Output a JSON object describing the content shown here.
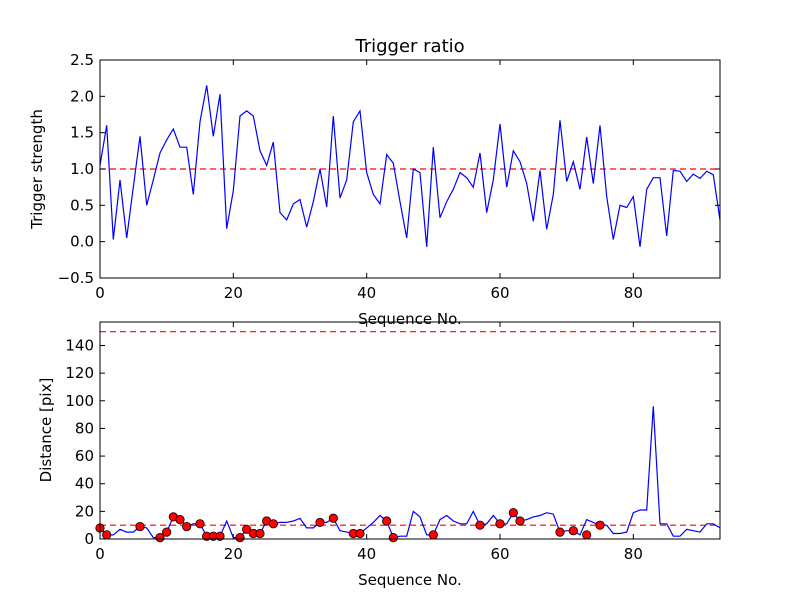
{
  "chart_data": [
    {
      "type": "line",
      "title": "Trigger ratio",
      "xlabel": "Sequence No.",
      "ylabel": "Trigger strength",
      "xlim": [
        0,
        93
      ],
      "ylim": [
        -0.5,
        2.5
      ],
      "xticks": [
        0,
        20,
        40,
        60,
        80
      ],
      "yticks": [
        -0.5,
        0.0,
        0.5,
        1.0,
        1.5,
        2.0,
        2.5
      ],
      "xtick_labels": [
        "0",
        "20",
        "40",
        "60",
        "80"
      ],
      "ytick_labels": [
        "−0.5",
        "0.0",
        "0.5",
        "1.0",
        "1.5",
        "2.0",
        "2.5"
      ],
      "grid": false,
      "series": [
        {
          "name": "trigger strength",
          "color": "#0000ff",
          "x": [
            0,
            1,
            2,
            3,
            4,
            5,
            6,
            7,
            8,
            9,
            10,
            11,
            12,
            13,
            14,
            15,
            16,
            17,
            18,
            19,
            20,
            21,
            22,
            23,
            24,
            25,
            26,
            27,
            28,
            29,
            30,
            31,
            32,
            33,
            34,
            35,
            36,
            37,
            38,
            39,
            40,
            41,
            42,
            43,
            44,
            45,
            46,
            47,
            48,
            49,
            50,
            51,
            52,
            53,
            54,
            55,
            56,
            57,
            58,
            59,
            60,
            61,
            62,
            63,
            64,
            65,
            66,
            67,
            68,
            69,
            70,
            71,
            72,
            73,
            74,
            75,
            76,
            77,
            78,
            79,
            80,
            81,
            82,
            83,
            84,
            85,
            86,
            87,
            88,
            89,
            90,
            91,
            92,
            93
          ],
          "values": [
            1.05,
            1.6,
            0.03,
            0.85,
            0.05,
            0.75,
            1.45,
            0.5,
            0.85,
            1.22,
            1.4,
            1.55,
            1.3,
            1.3,
            0.65,
            1.65,
            2.15,
            1.45,
            2.03,
            0.18,
            0.7,
            1.73,
            1.8,
            1.73,
            1.25,
            1.05,
            1.37,
            0.4,
            0.3,
            0.52,
            0.58,
            0.2,
            0.55,
            1.0,
            0.48,
            1.73,
            0.6,
            0.85,
            1.65,
            1.8,
            0.95,
            0.65,
            0.52,
            1.2,
            1.08,
            0.55,
            0.05,
            1.0,
            0.95,
            -0.07,
            1.3,
            0.33,
            0.55,
            0.72,
            0.95,
            0.88,
            0.75,
            1.22,
            0.4,
            0.85,
            1.62,
            0.75,
            1.25,
            1.1,
            0.8,
            0.28,
            0.98,
            0.17,
            0.65,
            1.67,
            0.83,
            1.1,
            0.72,
            1.44,
            0.8,
            1.6,
            0.62,
            0.03,
            0.5,
            0.47,
            0.62,
            -0.07,
            0.72,
            0.88,
            0.88,
            0.08,
            0.98,
            0.97,
            0.83,
            0.93,
            0.87,
            0.97,
            0.92,
            0.3
          ]
        }
      ],
      "threshold_lines": [
        {
          "value": 1.0,
          "color": "#ff0000",
          "style": "dashed"
        }
      ]
    },
    {
      "type": "line",
      "title": "",
      "xlabel": "Sequence No.",
      "ylabel": "Distance [pix]",
      "xlim": [
        0,
        93
      ],
      "ylim": [
        0,
        157
      ],
      "xticks": [
        0,
        20,
        40,
        60,
        80
      ],
      "yticks": [
        0,
        20,
        40,
        60,
        80,
        100,
        120,
        140
      ],
      "xtick_labels": [
        "0",
        "20",
        "40",
        "60",
        "80"
      ],
      "ytick_labels": [
        "0",
        "20",
        "40",
        "60",
        "80",
        "100",
        "120",
        "140"
      ],
      "grid": false,
      "series": [
        {
          "name": "distance",
          "color": "#0000ff",
          "x": [
            0,
            1,
            2,
            3,
            4,
            5,
            6,
            7,
            8,
            9,
            10,
            11,
            12,
            13,
            14,
            15,
            16,
            17,
            18,
            19,
            20,
            21,
            22,
            23,
            24,
            25,
            26,
            27,
            28,
            29,
            30,
            31,
            32,
            33,
            34,
            35,
            36,
            37,
            38,
            39,
            40,
            41,
            42,
            43,
            44,
            45,
            46,
            47,
            48,
            49,
            50,
            51,
            52,
            53,
            54,
            55,
            56,
            57,
            58,
            59,
            60,
            61,
            62,
            63,
            64,
            65,
            66,
            67,
            68,
            69,
            70,
            71,
            72,
            73,
            74,
            75,
            76,
            77,
            78,
            79,
            80,
            81,
            82,
            83,
            84,
            85,
            86,
            87,
            88,
            89,
            90,
            91,
            92,
            93
          ],
          "values": [
            8,
            3,
            3,
            7,
            5,
            5,
            9,
            8,
            1,
            1,
            5,
            16,
            14,
            9,
            11,
            11,
            2,
            2,
            2,
            13,
            1,
            1,
            7,
            4,
            4,
            13,
            11,
            12,
            12,
            13,
            15,
            8,
            8,
            12,
            12,
            15,
            6,
            5,
            4,
            4,
            8,
            12,
            17,
            13,
            1,
            2,
            2,
            20,
            16,
            3,
            3,
            14,
            17,
            13,
            11,
            11,
            20,
            10,
            11,
            17,
            11,
            11,
            19,
            13,
            14,
            16,
            17,
            19,
            18,
            5,
            6,
            6,
            3,
            14,
            12,
            10,
            10,
            4,
            4,
            5,
            19,
            21,
            21,
            96,
            11,
            11,
            2,
            2,
            7,
            6,
            5,
            11,
            11,
            8
          ]
        },
        {
          "name": "flagged points",
          "color": "#ff0000",
          "marker": "circle",
          "x": [
            0,
            1,
            6,
            9,
            10,
            11,
            12,
            13,
            15,
            16,
            17,
            18,
            21,
            22,
            23,
            24,
            25,
            26,
            33,
            35,
            38,
            39,
            43,
            44,
            50,
            57,
            60,
            62,
            63,
            69,
            71,
            73,
            75
          ],
          "values": [
            8,
            3,
            9,
            1,
            5,
            16,
            14,
            9,
            11,
            2,
            2,
            2,
            1,
            7,
            4,
            4,
            13,
            11,
            12,
            15,
            4,
            4,
            13,
            1,
            3,
            10,
            11,
            19,
            13,
            5,
            6,
            3,
            10
          ]
        }
      ],
      "threshold_lines": [
        {
          "value": 10,
          "color": "#ff0000",
          "style": "dashed"
        },
        {
          "value": 150,
          "color": "#ff0000",
          "style": "dashed"
        }
      ]
    }
  ]
}
